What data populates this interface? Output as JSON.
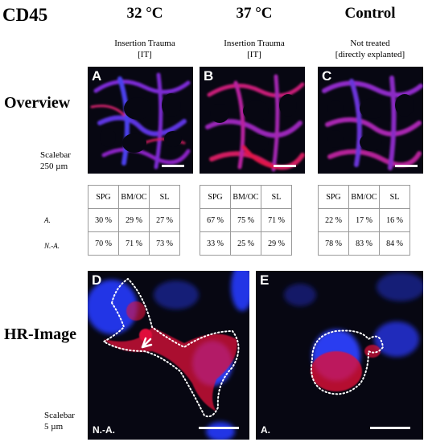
{
  "title": "CD45",
  "columns": [
    {
      "heading": "32 °C",
      "line1": "Insertion Trauma",
      "line2": "[IT]"
    },
    {
      "heading": "37 °C",
      "line1": "Insertion Trauma",
      "line2": "[IT]"
    },
    {
      "heading": "Control",
      "line1": "Not treated",
      "line2": "[directly explanted]"
    }
  ],
  "rows": {
    "overview": "Overview",
    "hr_image": "HR-Image"
  },
  "scalebars": {
    "overview_line1": "Scalebar",
    "overview_line2": "250 µm",
    "hr_line1": "Scalebar",
    "hr_line2": "5 µm"
  },
  "panels": {
    "a": "A",
    "b": "B",
    "c": "C",
    "d": "D",
    "e": "E",
    "d_corner": "N.-A.",
    "e_corner": "A."
  },
  "table": {
    "headers": [
      "SPG",
      "BM/OC",
      "SL"
    ],
    "row_labels": [
      "A.",
      "N.-A."
    ],
    "groups": [
      {
        "a": [
          "30 %",
          "29 %",
          "27 %"
        ],
        "na": [
          "70 %",
          "71 %",
          "73 %"
        ]
      },
      {
        "a": [
          "67 %",
          "75 %",
          "71 %"
        ],
        "na": [
          "33 %",
          "25 %",
          "29 %"
        ]
      },
      {
        "a": [
          "22 %",
          "17 %",
          "16 %"
        ],
        "na": [
          "78 %",
          "83 %",
          "84 %"
        ]
      }
    ]
  },
  "colors": {
    "nuclei": "#2b3cf0",
    "cd45": "#e0103a",
    "background": "#070712"
  }
}
